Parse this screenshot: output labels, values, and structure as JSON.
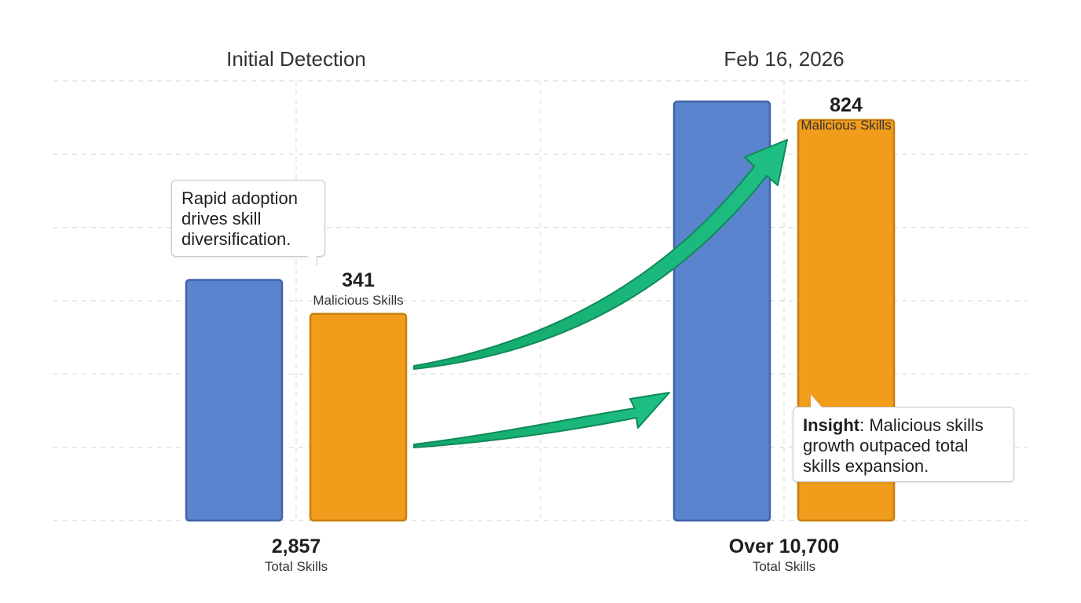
{
  "chart_data": {
    "type": "bar",
    "categories": [
      "Initial Detection",
      "Feb 16, 2026"
    ],
    "ylim": [
      0,
      12000
    ],
    "series": [
      {
        "name": "Total Skills",
        "color": "#5B84CE",
        "stroke": "#3F62A8",
        "values": [
          2857,
          10700
        ],
        "labels": [
          {
            "num": "2,857",
            "caption": "Total Skills"
          },
          {
            "num": "Over 10,700",
            "caption": "Total Skills"
          }
        ]
      },
      {
        "name": "Malicious Skills",
        "color": "#F19D1B",
        "stroke": "#C97E0E",
        "values": [
          341,
          824
        ],
        "labels": [
          {
            "num": "341",
            "caption": "Malicious Skills"
          },
          {
            "num": "824",
            "caption": "Malicious Skills"
          }
        ]
      }
    ],
    "annotations": {
      "left": "Rapid adoption drives skill diversification.",
      "right_bold": "Insight",
      "right_text": ": Malicious skills growth outpaced total skills expansion."
    },
    "arrow_color": "#1EB47A",
    "grid": true
  }
}
